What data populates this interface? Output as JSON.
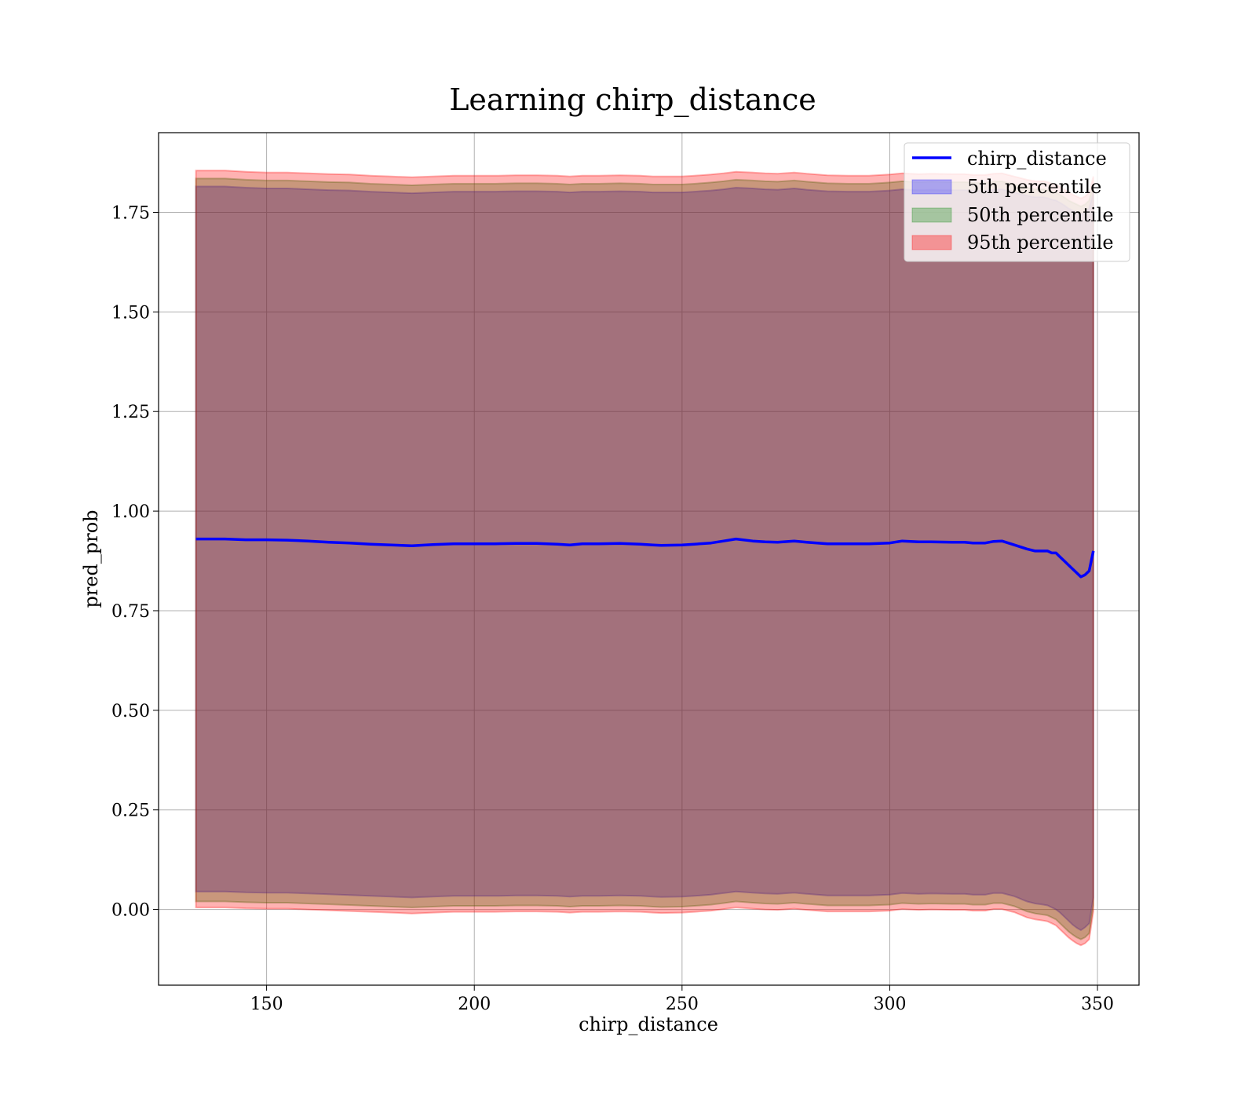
{
  "chart_data": {
    "type": "area",
    "title": "Learning chirp_distance",
    "xlabel": "chirp_distance",
    "ylabel": "pred_prob",
    "xlim": [
      124,
      360
    ],
    "ylim": [
      -0.19,
      1.95
    ],
    "xticks": [
      150,
      200,
      250,
      300,
      350
    ],
    "xtick_labels": [
      "150",
      "200",
      "250",
      "300",
      "350"
    ],
    "yticks": [
      0.0,
      0.25,
      0.5,
      0.75,
      1.0,
      1.25,
      1.5,
      1.75
    ],
    "ytick_labels": [
      "0.00",
      "0.25",
      "0.50",
      "0.75",
      "1.00",
      "1.25",
      "1.50",
      "1.75"
    ],
    "grid": true,
    "legend_position": "top-right",
    "colors": {
      "line": "#0000ff",
      "p5": "#0000ff",
      "p50": "#008000",
      "p95": "#ff0000",
      "grid": "#b0b0b0"
    },
    "x": [
      133,
      140,
      145,
      150,
      155,
      160,
      165,
      170,
      175,
      180,
      185,
      190,
      195,
      200,
      205,
      210,
      215,
      220,
      223,
      226,
      230,
      235,
      240,
      243,
      245,
      250,
      253,
      257,
      260,
      263,
      267,
      270,
      273,
      277,
      280,
      285,
      290,
      295,
      300,
      303,
      307,
      310,
      315,
      318,
      320,
      323,
      325,
      327,
      330,
      333,
      335,
      337,
      338,
      339,
      340,
      341,
      342,
      343,
      344,
      345,
      346,
      347,
      348,
      349
    ],
    "series": [
      {
        "name": "chirp_distance",
        "kind": "line",
        "values": [
          0.93,
          0.93,
          0.928,
          0.928,
          0.927,
          0.925,
          0.922,
          0.92,
          0.917,
          0.915,
          0.913,
          0.916,
          0.918,
          0.918,
          0.918,
          0.919,
          0.919,
          0.917,
          0.915,
          0.918,
          0.918,
          0.919,
          0.917,
          0.915,
          0.914,
          0.915,
          0.917,
          0.92,
          0.925,
          0.93,
          0.925,
          0.923,
          0.922,
          0.925,
          0.922,
          0.918,
          0.918,
          0.918,
          0.92,
          0.925,
          0.923,
          0.923,
          0.922,
          0.922,
          0.92,
          0.92,
          0.924,
          0.925,
          0.915,
          0.905,
          0.9,
          0.9,
          0.9,
          0.895,
          0.895,
          0.885,
          0.875,
          0.865,
          0.855,
          0.845,
          0.835,
          0.84,
          0.85,
          0.9
        ]
      },
      {
        "name": "5th percentile",
        "kind": "band",
        "upper": [
          1.815,
          1.815,
          1.812,
          1.81,
          1.81,
          1.808,
          1.806,
          1.805,
          1.802,
          1.8,
          1.798,
          1.8,
          1.802,
          1.802,
          1.802,
          1.803,
          1.803,
          1.802,
          1.8,
          1.802,
          1.802,
          1.803,
          1.802,
          1.8,
          1.8,
          1.8,
          1.802,
          1.805,
          1.808,
          1.812,
          1.81,
          1.808,
          1.807,
          1.81,
          1.807,
          1.803,
          1.802,
          1.802,
          1.805,
          1.808,
          1.806,
          1.807,
          1.806,
          1.806,
          1.804,
          1.804,
          1.807,
          1.808,
          1.8,
          1.792,
          1.788,
          1.788,
          1.786,
          1.782,
          1.78,
          1.774,
          1.768,
          1.76,
          1.755,
          1.75,
          1.745,
          1.75,
          1.76,
          1.8
        ],
        "lower": [
          0.045,
          0.045,
          0.043,
          0.042,
          0.042,
          0.04,
          0.038,
          0.036,
          0.034,
          0.032,
          0.03,
          0.032,
          0.034,
          0.034,
          0.034,
          0.035,
          0.035,
          0.034,
          0.032,
          0.034,
          0.034,
          0.035,
          0.034,
          0.032,
          0.031,
          0.032,
          0.034,
          0.037,
          0.041,
          0.045,
          0.042,
          0.04,
          0.039,
          0.042,
          0.039,
          0.035,
          0.035,
          0.035,
          0.037,
          0.041,
          0.039,
          0.04,
          0.039,
          0.039,
          0.037,
          0.037,
          0.041,
          0.041,
          0.033,
          0.02,
          0.015,
          0.012,
          0.01,
          0.005,
          0.0,
          -0.008,
          -0.018,
          -0.028,
          -0.038,
          -0.046,
          -0.052,
          -0.045,
          -0.035,
          0.03
        ]
      },
      {
        "name": "50th percentile",
        "kind": "band",
        "upper": [
          1.835,
          1.835,
          1.832,
          1.83,
          1.83,
          1.828,
          1.826,
          1.825,
          1.822,
          1.82,
          1.818,
          1.82,
          1.822,
          1.822,
          1.822,
          1.823,
          1.823,
          1.822,
          1.82,
          1.822,
          1.822,
          1.823,
          1.822,
          1.82,
          1.82,
          1.82,
          1.822,
          1.825,
          1.828,
          1.832,
          1.83,
          1.828,
          1.827,
          1.83,
          1.827,
          1.823,
          1.822,
          1.822,
          1.825,
          1.828,
          1.826,
          1.827,
          1.826,
          1.826,
          1.824,
          1.824,
          1.827,
          1.828,
          1.82,
          1.812,
          1.808,
          1.808,
          1.806,
          1.802,
          1.8,
          1.794,
          1.788,
          1.78,
          1.775,
          1.77,
          1.765,
          1.77,
          1.78,
          1.82
        ],
        "lower": [
          0.02,
          0.02,
          0.018,
          0.017,
          0.017,
          0.015,
          0.013,
          0.011,
          0.009,
          0.007,
          0.005,
          0.007,
          0.009,
          0.009,
          0.009,
          0.01,
          0.01,
          0.009,
          0.007,
          0.009,
          0.009,
          0.01,
          0.009,
          0.007,
          0.006,
          0.007,
          0.009,
          0.012,
          0.016,
          0.02,
          0.017,
          0.015,
          0.014,
          0.017,
          0.014,
          0.01,
          0.01,
          0.01,
          0.012,
          0.016,
          0.014,
          0.015,
          0.014,
          0.014,
          0.012,
          0.012,
          0.016,
          0.016,
          0.008,
          -0.005,
          -0.01,
          -0.013,
          -0.015,
          -0.02,
          -0.025,
          -0.035,
          -0.045,
          -0.055,
          -0.063,
          -0.07,
          -0.075,
          -0.07,
          -0.06,
          0.01
        ]
      },
      {
        "name": "95th percentile",
        "kind": "band",
        "upper": [
          1.855,
          1.855,
          1.852,
          1.85,
          1.85,
          1.848,
          1.846,
          1.845,
          1.842,
          1.84,
          1.838,
          1.84,
          1.842,
          1.842,
          1.842,
          1.843,
          1.843,
          1.842,
          1.84,
          1.842,
          1.842,
          1.843,
          1.842,
          1.84,
          1.84,
          1.84,
          1.842,
          1.845,
          1.848,
          1.852,
          1.85,
          1.848,
          1.847,
          1.85,
          1.847,
          1.843,
          1.842,
          1.842,
          1.845,
          1.848,
          1.846,
          1.847,
          1.846,
          1.846,
          1.844,
          1.844,
          1.847,
          1.848,
          1.84,
          1.832,
          1.828,
          1.828,
          1.826,
          1.822,
          1.82,
          1.814,
          1.808,
          1.8,
          1.795,
          1.79,
          1.785,
          1.79,
          1.8,
          1.84
        ],
        "lower": [
          0.005,
          0.005,
          0.003,
          0.002,
          0.002,
          0.0,
          -0.002,
          -0.004,
          -0.006,
          -0.008,
          -0.01,
          -0.008,
          -0.006,
          -0.006,
          -0.006,
          -0.005,
          -0.005,
          -0.006,
          -0.008,
          -0.006,
          -0.006,
          -0.005,
          -0.006,
          -0.008,
          -0.009,
          -0.008,
          -0.006,
          -0.003,
          0.001,
          0.005,
          0.002,
          0.0,
          -0.001,
          0.002,
          -0.001,
          -0.005,
          -0.005,
          -0.005,
          -0.003,
          0.001,
          -0.001,
          0.0,
          -0.001,
          -0.001,
          -0.003,
          -0.003,
          0.001,
          0.001,
          -0.007,
          -0.02,
          -0.025,
          -0.028,
          -0.03,
          -0.035,
          -0.04,
          -0.05,
          -0.06,
          -0.07,
          -0.078,
          -0.085,
          -0.09,
          -0.085,
          -0.075,
          -0.005
        ]
      }
    ]
  }
}
